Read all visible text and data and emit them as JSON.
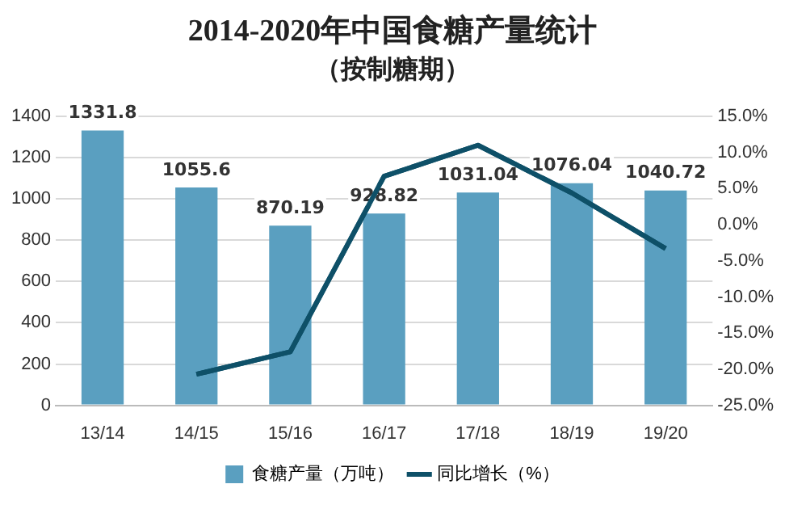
{
  "chart_data": {
    "type": "bar",
    "title": "2014-2020年中国食糖产量统计",
    "subtitle": "（按制糖期）",
    "categories": [
      "13/14",
      "14/15",
      "15/16",
      "16/17",
      "17/18",
      "18/19",
      "19/20"
    ],
    "series": [
      {
        "name": "食糖产量（万吨）",
        "color": "#5a9fc0",
        "values": [
          1331.8,
          1055.6,
          870.19,
          928.82,
          1031.04,
          1076.04,
          1040.72
        ],
        "value_labels": [
          "1331.8",
          "1055.6",
          "870.19",
          "928.82",
          "1031.04",
          "1076.04",
          "1040.72"
        ]
      },
      {
        "name": "同比增长（%）",
        "type": "line",
        "axis": "y2",
        "color": "#0e5068",
        "values": [
          null,
          -20.7,
          -17.6,
          6.7,
          11.0,
          4.4,
          -3.3
        ]
      }
    ],
    "ylim": [
      0,
      1400
    ],
    "yticks": [
      0,
      200,
      400,
      600,
      800,
      1000,
      1200,
      1400
    ],
    "y2lim": [
      -25,
      15
    ],
    "y2ticks": [
      {
        "value": -25,
        "label": "-25.0%"
      },
      {
        "value": -20,
        "label": "-20.0%"
      },
      {
        "value": -15,
        "label": "-15.0%"
      },
      {
        "value": -10,
        "label": "-10.0%"
      },
      {
        "value": -5,
        "label": "-5.0%"
      },
      {
        "value": 0,
        "label": "0.0%"
      },
      {
        "value": 5,
        "label": "5.0%"
      },
      {
        "value": 10,
        "label": "10.0%"
      },
      {
        "value": 15,
        "label": "15.0%"
      }
    ],
    "grid": "y",
    "legend": "bottom",
    "marker": "none"
  }
}
